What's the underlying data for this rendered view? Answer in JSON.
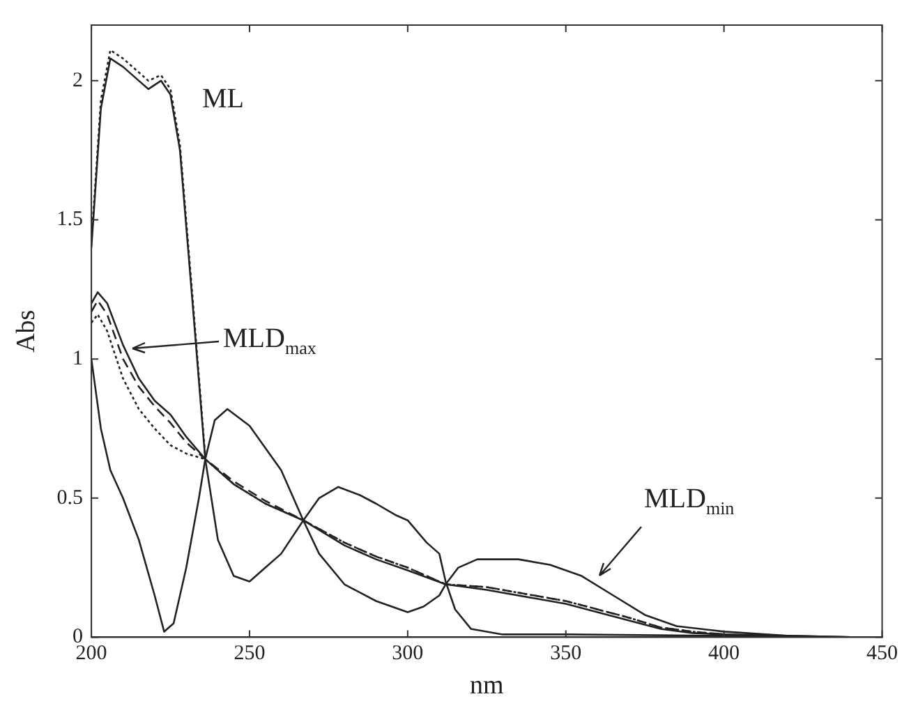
{
  "chart_data": {
    "type": "line",
    "xlabel": "nm",
    "ylabel": "Abs",
    "xlim": [
      200,
      450
    ],
    "xticks": [
      200,
      250,
      300,
      350,
      400,
      450
    ],
    "ylim": [
      0,
      2.2
    ],
    "yticks": [
      0,
      0.5,
      1,
      1.5,
      2
    ],
    "grid": false,
    "legend": false,
    "marker": "none",
    "annotations": [
      "ML",
      "MLD$_{max}$",
      "MLD$_{min}$"
    ],
    "series": [
      {
        "color": "#222222",
        "line_style": "solid",
        "x": [
          200,
          203,
          206,
          210,
          215,
          218,
          222,
          225,
          228,
          232,
          236,
          240,
          245,
          250,
          255,
          260,
          267,
          272,
          278,
          285,
          290,
          296,
          300,
          303,
          306,
          310,
          312,
          315,
          320,
          330,
          350,
          400,
          440
        ],
        "values": [
          1.4,
          1.9,
          2.08,
          2.05,
          2.0,
          1.97,
          2.0,
          1.95,
          1.75,
          1.2,
          0.64,
          0.35,
          0.22,
          0.2,
          0.25,
          0.3,
          0.42,
          0.5,
          0.54,
          0.51,
          0.48,
          0.44,
          0.42,
          0.38,
          0.34,
          0.3,
          0.2,
          0.1,
          0.03,
          0.01,
          0.01,
          0.005,
          0
        ]
      },
      {
        "color": "#222222",
        "line_style": "dotted",
        "x": [
          200,
          203,
          206,
          210,
          215,
          218,
          222,
          225,
          228,
          232,
          236
        ],
        "values": [
          1.42,
          1.93,
          2.11,
          2.08,
          2.03,
          2.0,
          2.02,
          1.97,
          1.77,
          1.22,
          0.65
        ]
      },
      {
        "color": "#222222",
        "line_style": "solid",
        "x": [
          200,
          202,
          205,
          210,
          215,
          220,
          225,
          230,
          236,
          245,
          255,
          267,
          280,
          290,
          300,
          312,
          325,
          340,
          350,
          360,
          370,
          380,
          390,
          400,
          420,
          440
        ],
        "values": [
          1.2,
          1.24,
          1.2,
          1.05,
          0.93,
          0.85,
          0.8,
          0.72,
          0.64,
          0.55,
          0.48,
          0.42,
          0.33,
          0.28,
          0.24,
          0.19,
          0.17,
          0.14,
          0.12,
          0.09,
          0.06,
          0.03,
          0.015,
          0.01,
          0.005,
          0
        ]
      },
      {
        "color": "#222222",
        "line_style": "dashed",
        "x": [
          200,
          202,
          205,
          210,
          215,
          220,
          225,
          230,
          236,
          245,
          255,
          267,
          280,
          290,
          300,
          312,
          325,
          340,
          350,
          360,
          370,
          380,
          390,
          400
        ],
        "values": [
          1.17,
          1.21,
          1.16,
          1.0,
          0.9,
          0.83,
          0.77,
          0.7,
          0.64,
          0.56,
          0.49,
          0.42,
          0.34,
          0.29,
          0.25,
          0.19,
          0.18,
          0.15,
          0.13,
          0.1,
          0.07,
          0.035,
          0.02,
          0.01
        ]
      },
      {
        "color": "#222222",
        "line_style": "dotted",
        "x": [
          200,
          202,
          205,
          210,
          215,
          220,
          225,
          230,
          236,
          245,
          255,
          267,
          280,
          290,
          300,
          312,
          325,
          340,
          350,
          360,
          370,
          380,
          390,
          400
        ],
        "values": [
          1.13,
          1.16,
          1.1,
          0.93,
          0.82,
          0.75,
          0.69,
          0.66,
          0.64,
          0.55,
          0.48,
          0.42,
          0.34,
          0.29,
          0.25,
          0.19,
          0.18,
          0.15,
          0.13,
          0.1,
          0.07,
          0.035,
          0.02,
          0.01
        ]
      },
      {
        "color": "#222222",
        "line_style": "solid",
        "x": [
          200,
          203,
          206,
          210,
          215,
          220,
          223,
          226,
          230,
          234,
          236,
          239,
          243,
          250,
          260,
          267,
          272,
          280,
          290,
          300,
          305,
          310,
          312,
          316,
          322,
          335,
          345,
          355,
          365,
          375,
          385,
          400,
          420,
          440
        ],
        "values": [
          1.0,
          0.75,
          0.6,
          0.5,
          0.35,
          0.15,
          0.02,
          0.05,
          0.25,
          0.5,
          0.64,
          0.78,
          0.82,
          0.76,
          0.6,
          0.42,
          0.3,
          0.19,
          0.13,
          0.09,
          0.11,
          0.15,
          0.19,
          0.25,
          0.28,
          0.28,
          0.26,
          0.22,
          0.15,
          0.08,
          0.04,
          0.02,
          0.005,
          0
        ]
      }
    ]
  }
}
